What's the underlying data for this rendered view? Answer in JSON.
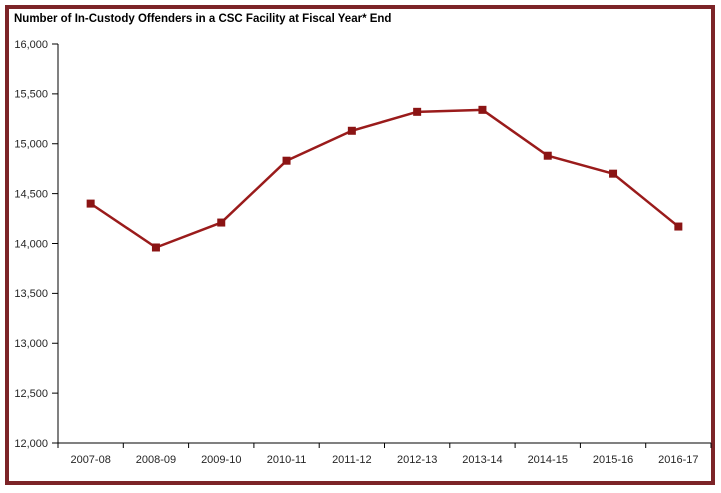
{
  "window": {
    "background_color": "#ffffff",
    "frame_border_color": "#7c2427"
  },
  "chart_data": {
    "type": "line",
    "title": "Number of In-Custody Offenders in a CSC Facility at Fiscal Year* End",
    "categories": [
      "2007-08",
      "2008-09",
      "2009-10",
      "2010-11",
      "2011-12",
      "2012-13",
      "2013-14",
      "2014-15",
      "2015-16",
      "2016-17"
    ],
    "series": [
      {
        "name": "In-custody offenders",
        "values": [
          14400,
          13960,
          14210,
          14830,
          15130,
          15320,
          15340,
          14880,
          14700,
          14170
        ],
        "line_color": "#9a1b1b",
        "marker": "square",
        "marker_color": "#8b1414"
      }
    ],
    "xlabel": "",
    "ylabel": "",
    "ylim": [
      12000,
      16000
    ],
    "ytick_step": 500,
    "yticks": [
      12000,
      12500,
      13000,
      13500,
      14000,
      14500,
      15000,
      15500,
      16000
    ],
    "ytick_labels": [
      "12,000",
      "12,500",
      "13,000",
      "13,500",
      "14,000",
      "14,500",
      "15,000",
      "15,500",
      "16,000"
    ],
    "grid": false,
    "legend_position": "none",
    "axis_color": "#000000",
    "tick_label_color": "#262626"
  }
}
